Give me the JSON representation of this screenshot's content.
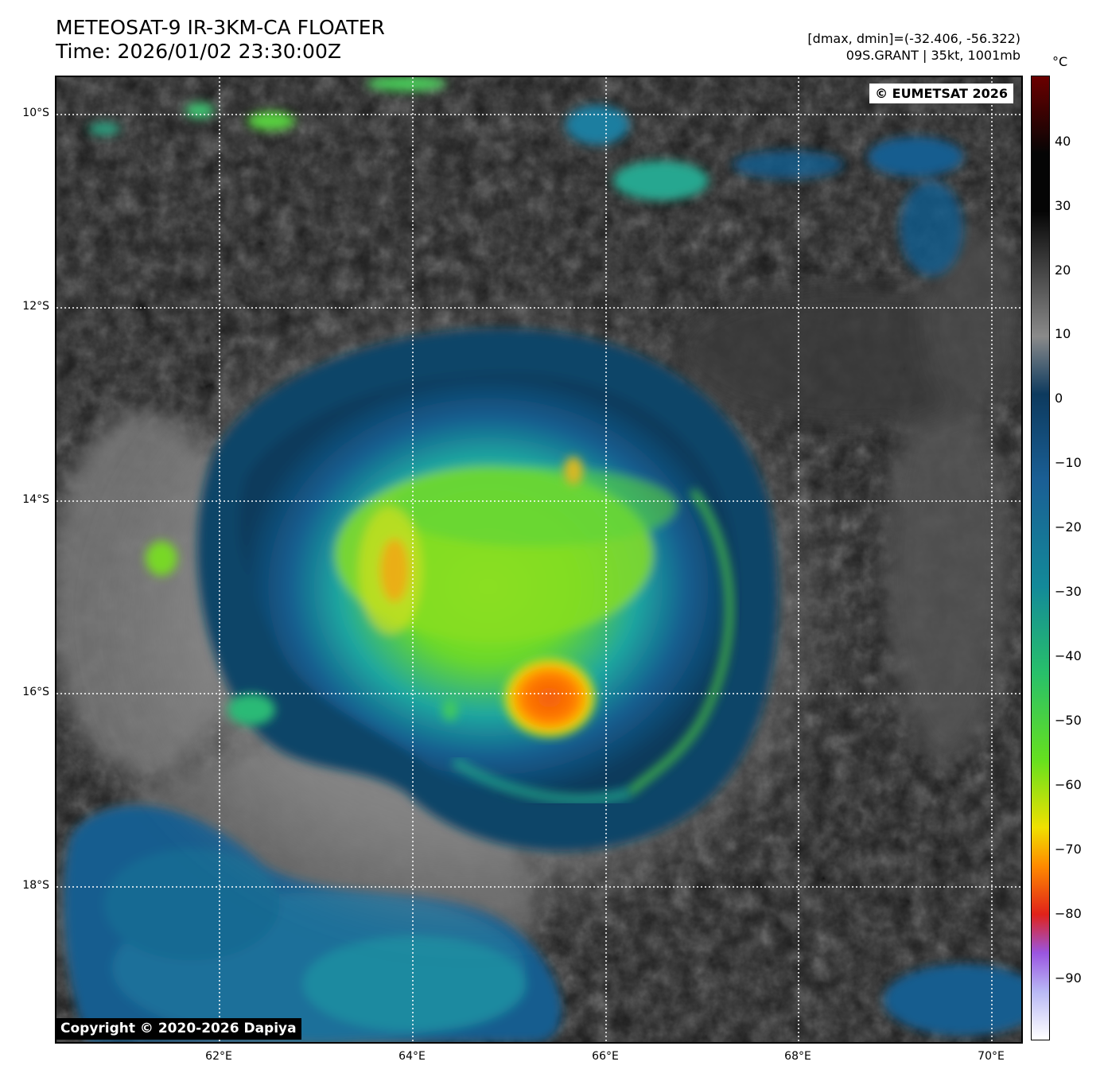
{
  "title": {
    "line1": "METEOSAT-9 IR-3KM-CA FLOATER",
    "line2": "Time: 2026/01/02 23:30:00Z"
  },
  "meta": {
    "line1": "[dmax, dmin]=(-32.406, -56.322)",
    "line2": "09S.GRANT | 35kt, 1001mb"
  },
  "map": {
    "lat_labels": [
      "10°S",
      "12°S",
      "14°S",
      "16°S",
      "18°S"
    ],
    "lon_labels": [
      "62°E",
      "64°E",
      "66°E",
      "68°E",
      "70°E"
    ],
    "copyright": "Copyright © 2020-2026 Dapiya",
    "watermark": "© EUMETSAT 2026"
  },
  "colorbar": {
    "unit": "°C",
    "ticks": [
      "40",
      "30",
      "20",
      "10",
      "0",
      "−10",
      "−20",
      "−30",
      "−40",
      "−50",
      "−60",
      "−70",
      "−80",
      "−90"
    ],
    "colors": {
      "warm_top": "#6b0000",
      "black": "#050505",
      "gray": "#8a8a8a",
      "navy": "#0d3a5e",
      "blue": "#1a5f95",
      "teal": "#138a99",
      "green": "#28c06a",
      "lime": "#66e01e",
      "yellow": "#f0e000",
      "orange": "#ff8a00",
      "red": "#e0221a",
      "purple": "#9a55e0",
      "lavender": "#b8b8f5",
      "white": "#ffffff"
    }
  }
}
